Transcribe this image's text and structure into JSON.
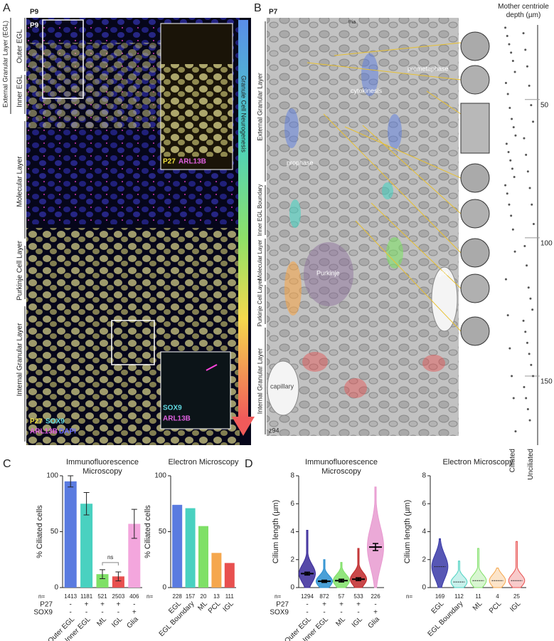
{
  "panel_labels": {
    "a": "A",
    "b": "B",
    "c": "C",
    "d": "D"
  },
  "panel_a": {
    "stage": "P9",
    "inset_stage": "P9",
    "egl_group": "External Granular Layer (EGL)",
    "layers": [
      "Outer EGL",
      "Inner EGL",
      "Molecular Layer",
      "Purkinje Cell Layer",
      "Internal Granular Layer"
    ],
    "neurogenesis": "Granule Cell Neurogenesis",
    "inset_top": [
      "P27",
      "ARL13B"
    ],
    "inset_bottom": [
      "SOX9",
      "ARL13B"
    ],
    "stains": [
      "P27",
      "SOX9",
      "ARL13B",
      "DAPI"
    ]
  },
  "panel_b": {
    "stage": "P7",
    "pia": "Pia",
    "section": "z94",
    "phases": [
      "prometaphase",
      "cytokinesis",
      "prophase"
    ],
    "cells": [
      "Purkinje",
      "glia",
      "capillary"
    ],
    "layers": [
      "External Granular Layer",
      "Inner EGL Boundary",
      "Molecular Layer",
      "Purkinje Cell Layer",
      "Internal Granular Layer"
    ]
  },
  "chart_data": [
    {
      "type": "strip",
      "title": "Mother centriole depth (µm)",
      "categories": [
        "Ciliated",
        "Unciliated"
      ],
      "series": [
        {
          "name": "Ciliated",
          "color": "#555555",
          "values": [
            24,
            27,
            30,
            33,
            36,
            40,
            44,
            48,
            53,
            57,
            60,
            63,
            66,
            69,
            72,
            75,
            78,
            81,
            84,
            88,
            92,
            97,
            105,
            115,
            128,
            140,
            150,
            158,
            170
          ]
        },
        {
          "name": "Unciliated",
          "color": "#555555",
          "values": [
            26,
            32,
            38,
            45,
            52,
            58,
            64,
            70,
            76,
            82,
            88,
            95,
            103,
            110,
            118,
            122,
            126,
            130,
            134,
            138,
            142,
            146,
            150,
            154,
            158,
            162,
            166
          ]
        }
      ],
      "ylim": [
        23,
        175
      ],
      "yticks": [
        50,
        100,
        150
      ],
      "inverted": true
    },
    {
      "type": "bar",
      "title": "Immunofluorescence Microscopy",
      "ylabel": "% Ciliated cells",
      "categories": [
        "Outer EGL",
        "Inner EGL",
        "ML",
        "IGL",
        "Glia"
      ],
      "values": [
        95,
        75,
        12,
        10,
        57
      ],
      "errors": [
        5,
        10,
        4,
        4,
        13
      ],
      "colors": [
        "#5a7be0",
        "#49d1c0",
        "#7fe067",
        "#e8504f",
        "#f3a6dd"
      ],
      "ylim": [
        0,
        100
      ],
      "yticks": [
        0,
        50,
        100
      ],
      "n_label": "n=",
      "n": [
        1413,
        1181,
        521,
        2503,
        406
      ],
      "factors": [
        {
          "name": "P27",
          "values": [
            "-",
            "+",
            "+",
            "+",
            "-"
          ]
        },
        {
          "name": "SOX9",
          "values": [
            "-",
            "-",
            "-",
            "-",
            "+"
          ]
        }
      ],
      "annotation": "ns"
    },
    {
      "type": "bar",
      "title": "Electron Microscopy",
      "ylabel": "% Ciliated cells",
      "categories": [
        "EGL",
        "EGL Boundary",
        "ML",
        "PCL",
        "IGL"
      ],
      "values": [
        74,
        71,
        55,
        31,
        22
      ],
      "colors": [
        "#5a7be0",
        "#49d1c0",
        "#7fe067",
        "#f5a74d",
        "#e8504f"
      ],
      "ylim": [
        0,
        100
      ],
      "yticks": [
        0,
        50,
        100
      ],
      "n_label": "n=",
      "n": [
        228,
        157,
        20,
        13,
        111
      ]
    },
    {
      "type": "swarm",
      "title": "Immunofluorescence Microscopy",
      "ylabel": "Cilium length (µm)",
      "categories": [
        "Outer EGL",
        "Inner EGL",
        "ML",
        "IGL",
        "Glia"
      ],
      "values": [
        1.0,
        0.45,
        0.5,
        0.6,
        2.9
      ],
      "errors": [
        0.1,
        0.08,
        0.1,
        0.1,
        0.25
      ],
      "max": [
        4.1,
        2.0,
        1.8,
        2.8,
        7.2
      ],
      "colors": [
        "#3a2a9a",
        "#2a8fd0",
        "#7fe067",
        "#c0282a",
        "#e89ad0"
      ],
      "ylim": [
        0,
        8
      ],
      "yticks": [
        0,
        2,
        4,
        6,
        8
      ],
      "n_label": "n=",
      "n": [
        1294,
        872,
        57,
        533,
        226
      ],
      "factors": [
        {
          "name": "P27",
          "values": [
            "-",
            "+",
            "+",
            "+",
            "-"
          ]
        },
        {
          "name": "SOX9",
          "values": [
            "-",
            "-",
            "-",
            "-",
            "+"
          ]
        }
      ]
    },
    {
      "type": "violin",
      "title": "Electron Microscopy",
      "ylabel": "Cilium length (µm)",
      "categories": [
        "EGL",
        "EGL Boundary",
        "ML",
        "PCL",
        "IGL"
      ],
      "values": [
        1.5,
        0.4,
        0.5,
        0.5,
        0.5
      ],
      "max": [
        3.5,
        1.9,
        2.8,
        1.4,
        3.3
      ],
      "colors": [
        "#3a3aa8",
        "#49d1c0",
        "#7fe067",
        "#f5a74d",
        "#e8504f"
      ],
      "ylim": [
        0,
        8
      ],
      "yticks": [
        0,
        2,
        4,
        6,
        8
      ],
      "n_label": "n=",
      "n": [
        169,
        112,
        11,
        4,
        25
      ]
    }
  ]
}
